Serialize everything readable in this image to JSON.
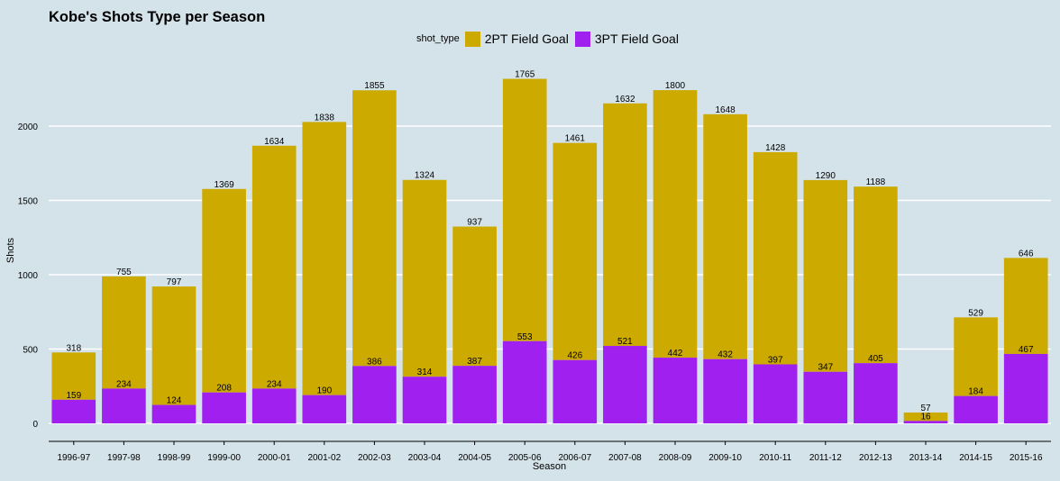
{
  "chart_data": {
    "type": "bar",
    "stacked": true,
    "title": "Kobe's Shots Type per Season",
    "xlabel": "Season",
    "ylabel": "Shots",
    "legend_title": "shot_type",
    "legend_position": "top",
    "grid": true,
    "ylim": [
      0,
      2400
    ],
    "yticks": [
      0,
      500,
      1000,
      1500,
      2000
    ],
    "categories": [
      "1996-97",
      "1997-98",
      "1998-99",
      "1999-00",
      "2000-01",
      "2001-02",
      "2002-03",
      "2003-04",
      "2004-05",
      "2005-06",
      "2006-07",
      "2007-08",
      "2008-09",
      "2009-10",
      "2010-11",
      "2011-12",
      "2012-13",
      "2013-14",
      "2014-15",
      "2015-16"
    ],
    "series": [
      {
        "name": "3PT Field Goal",
        "color": "#a020f0",
        "values": [
          159,
          234,
          124,
          208,
          234,
          190,
          386,
          314,
          387,
          553,
          426,
          521,
          442,
          432,
          397,
          347,
          405,
          16,
          184,
          467
        ]
      },
      {
        "name": "2PT Field Goal",
        "color": "#cdaa00",
        "values": [
          318,
          755,
          797,
          1369,
          1634,
          1838,
          1855,
          1324,
          937,
          1765,
          1461,
          1632,
          1800,
          1648,
          1428,
          1290,
          1188,
          57,
          529,
          646
        ]
      }
    ]
  }
}
